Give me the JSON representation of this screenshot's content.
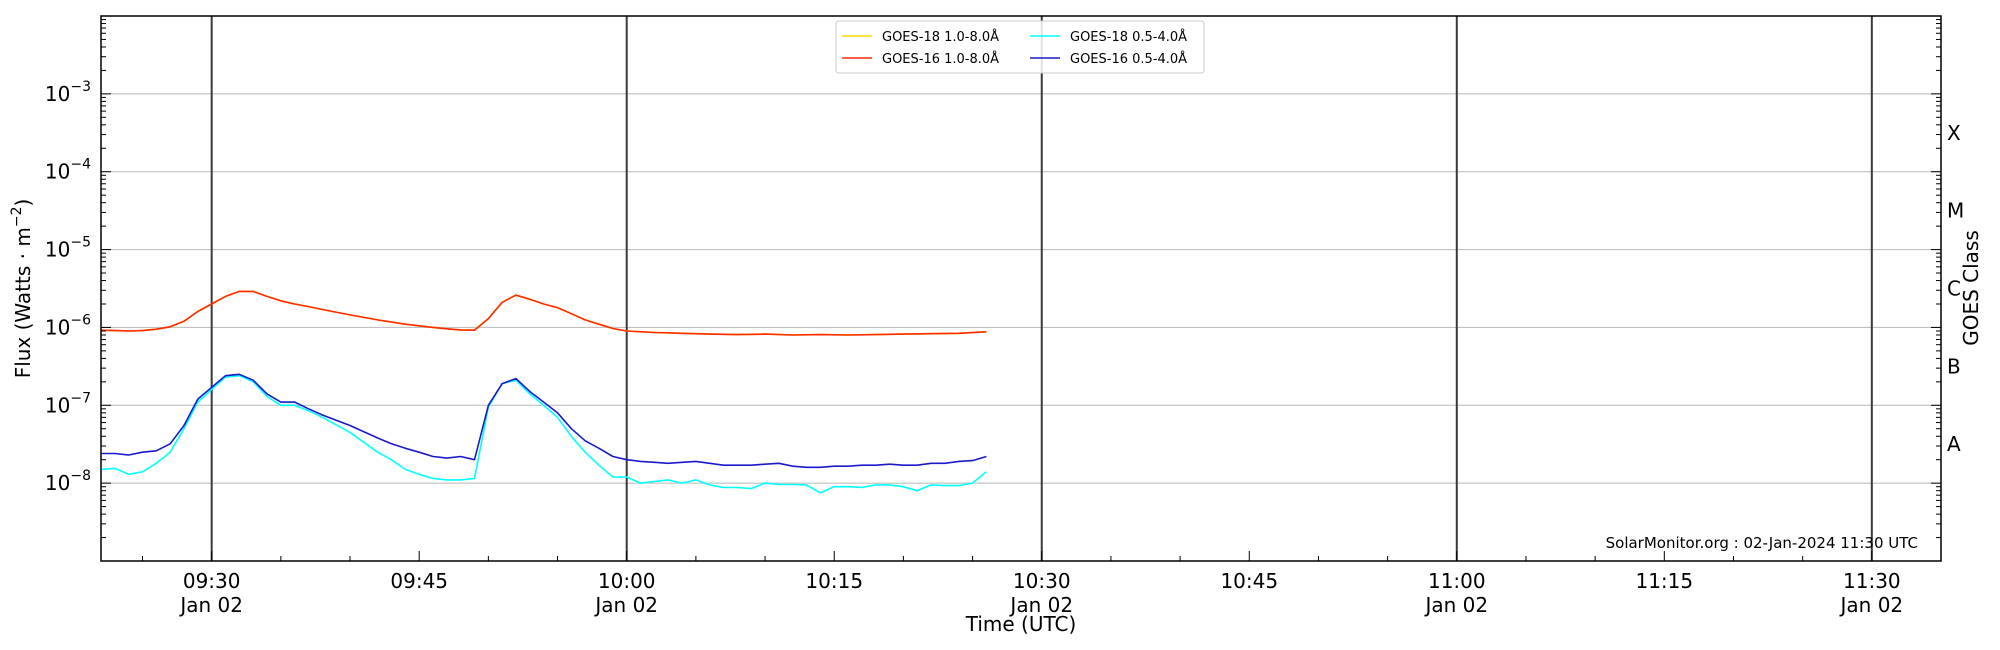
{
  "chart_data": {
    "type": "line",
    "xlabel": "Time (UTC)",
    "ylabel": "Flux (Watts · m⁻²)",
    "ylabel_right": "GOES Class",
    "y_scale": "log",
    "ylim": [
      1e-09,
      0.01
    ],
    "xlim": [
      "09:22",
      "11:35"
    ],
    "grid": "horizontal at decades",
    "legend_position": "top-center",
    "x_ticks": [
      {
        "time": "09:30",
        "label": "09:30",
        "date": "Jan 02"
      },
      {
        "time": "09:45",
        "label": "09:45",
        "date": ""
      },
      {
        "time": "10:00",
        "label": "10:00",
        "date": "Jan 02"
      },
      {
        "time": "10:15",
        "label": "10:15",
        "date": ""
      },
      {
        "time": "10:30",
        "label": "10:30",
        "date": "Jan 02"
      },
      {
        "time": "10:45",
        "label": "10:45",
        "date": ""
      },
      {
        "time": "11:00",
        "label": "11:00",
        "date": "Jan 02"
      },
      {
        "time": "11:15",
        "label": "11:15",
        "date": ""
      },
      {
        "time": "11:30",
        "label": "11:30",
        "date": "Jan 02"
      }
    ],
    "vlines": [
      "09:30",
      "10:00",
      "10:30",
      "11:00",
      "11:30"
    ],
    "y_ticks": [
      {
        "value": 1e-08,
        "base": "10",
        "exp": "−8"
      },
      {
        "value": 1e-07,
        "base": "10",
        "exp": "−7"
      },
      {
        "value": 1e-06,
        "base": "10",
        "exp": "−6"
      },
      {
        "value": 1e-05,
        "base": "10",
        "exp": "−5"
      },
      {
        "value": 0.0001,
        "base": "10",
        "exp": "−4"
      },
      {
        "value": 0.001,
        "base": "10",
        "exp": "−3"
      }
    ],
    "goes_classes": [
      {
        "label": "X",
        "value": 0.000316
      },
      {
        "label": "M",
        "value": 3.16e-05
      },
      {
        "label": "C",
        "value": 3.16e-06
      },
      {
        "label": "B",
        "value": 3.16e-07
      },
      {
        "label": "A",
        "value": 3.16e-08
      }
    ],
    "annotation": "SolarMonitor.org : 02-Jan-2024 11:30 UTC",
    "series": [
      {
        "name": "GOES-18 1.0-8.0Å",
        "color": "#ffd700",
        "times": [
          "09:22",
          "09:23",
          "09:24",
          "09:25",
          "09:26",
          "09:27",
          "09:28",
          "09:29",
          "09:30",
          "09:31",
          "09:32",
          "09:33",
          "09:34",
          "09:35",
          "09:36",
          "09:37",
          "09:38",
          "09:40",
          "09:42",
          "09:44",
          "09:46",
          "09:47",
          "09:48",
          "09:49",
          "09:50",
          "09:51",
          "09:52",
          "09:53",
          "09:54",
          "09:55",
          "09:56",
          "09:57",
          "09:58",
          "09:59",
          "10:00",
          "10:02",
          "10:04",
          "10:06",
          "10:08",
          "10:10",
          "10:12",
          "10:14",
          "10:16",
          "10:18",
          "10:20",
          "10:22",
          "10:24",
          "10:26"
        ],
        "values": [
          9.2e-07,
          9.1e-07,
          9e-07,
          9.1e-07,
          9.5e-07,
          1.02e-06,
          1.2e-06,
          1.6e-06,
          2e-06,
          2.5e-06,
          2.9e-06,
          2.9e-06,
          2.5e-06,
          2.2e-06,
          2e-06,
          1.85e-06,
          1.7e-06,
          1.45e-06,
          1.25e-06,
          1.1e-06,
          1e-06,
          9.6e-07,
          9.3e-07,
          9.2e-07,
          1.3e-06,
          2.1e-06,
          2.6e-06,
          2.3e-06,
          2e-06,
          1.8e-06,
          1.5e-06,
          1.25e-06,
          1.1e-06,
          9.7e-07,
          9e-07,
          8.6e-07,
          8.4e-07,
          8.2e-07,
          8.1e-07,
          8.2e-07,
          8e-07,
          8.1e-07,
          8e-07,
          8.1e-07,
          8.2e-07,
          8.3e-07,
          8.4e-07,
          8.8e-07
        ]
      },
      {
        "name": "GOES-16 1.0-8.0Å",
        "color": "#ff2a00",
        "times": [
          "09:22",
          "09:23",
          "09:24",
          "09:25",
          "09:26",
          "09:27",
          "09:28",
          "09:29",
          "09:30",
          "09:31",
          "09:32",
          "09:33",
          "09:34",
          "09:35",
          "09:36",
          "09:37",
          "09:38",
          "09:40",
          "09:42",
          "09:44",
          "09:46",
          "09:47",
          "09:48",
          "09:49",
          "09:50",
          "09:51",
          "09:52",
          "09:53",
          "09:54",
          "09:55",
          "09:56",
          "09:57",
          "09:58",
          "09:59",
          "10:00",
          "10:02",
          "10:04",
          "10:06",
          "10:08",
          "10:10",
          "10:12",
          "10:14",
          "10:16",
          "10:18",
          "10:20",
          "10:22",
          "10:24",
          "10:26"
        ],
        "values": [
          9.2e-07,
          9.1e-07,
          9e-07,
          9.1e-07,
          9.5e-07,
          1.02e-06,
          1.2e-06,
          1.6e-06,
          2e-06,
          2.5e-06,
          2.9e-06,
          2.9e-06,
          2.5e-06,
          2.2e-06,
          2e-06,
          1.85e-06,
          1.7e-06,
          1.45e-06,
          1.25e-06,
          1.1e-06,
          1e-06,
          9.6e-07,
          9.3e-07,
          9.2e-07,
          1.3e-06,
          2.1e-06,
          2.6e-06,
          2.3e-06,
          2e-06,
          1.8e-06,
          1.5e-06,
          1.25e-06,
          1.1e-06,
          9.7e-07,
          9e-07,
          8.6e-07,
          8.4e-07,
          8.2e-07,
          8.1e-07,
          8.2e-07,
          8e-07,
          8.1e-07,
          8e-07,
          8.1e-07,
          8.2e-07,
          8.3e-07,
          8.4e-07,
          8.8e-07
        ]
      },
      {
        "name": "GOES-18 0.5-4.0Å",
        "color": "#00ffff",
        "times": [
          "09:22",
          "09:23",
          "09:24",
          "09:25",
          "09:26",
          "09:27",
          "09:28",
          "09:29",
          "09:30",
          "09:31",
          "09:32",
          "09:33",
          "09:34",
          "09:35",
          "09:36",
          "09:37",
          "09:38",
          "09:40",
          "09:42",
          "09:43",
          "09:44",
          "09:45",
          "09:46",
          "09:47",
          "09:48",
          "09:49",
          "09:50",
          "09:51",
          "09:52",
          "09:53",
          "09:54",
          "09:55",
          "09:56",
          "09:57",
          "09:58",
          "09:59",
          "10:00",
          "10:01",
          "10:02",
          "10:03",
          "10:04",
          "10:05",
          "10:06",
          "10:07",
          "10:08",
          "10:09",
          "10:10",
          "10:11",
          "10:12",
          "10:13",
          "10:14",
          "10:15",
          "10:16",
          "10:17",
          "10:18",
          "10:19",
          "10:20",
          "10:21",
          "10:22",
          "10:23",
          "10:24",
          "10:25",
          "10:26"
        ],
        "values": [
          1.5e-08,
          1.55e-08,
          1.3e-08,
          1.4e-08,
          1.8e-08,
          2.5e-08,
          5e-08,
          1.1e-07,
          1.6e-07,
          2.3e-07,
          2.4e-07,
          2e-07,
          1.3e-07,
          1e-07,
          1e-07,
          8.5e-08,
          7e-08,
          4.5e-08,
          2.5e-08,
          2e-08,
          1.5e-08,
          1.3e-08,
          1.15e-08,
          1.1e-08,
          1.1e-08,
          1.15e-08,
          9.5e-08,
          1.9e-07,
          2.1e-07,
          1.4e-07,
          1e-07,
          7e-08,
          4e-08,
          2.5e-08,
          1.7e-08,
          1.2e-08,
          1.2e-08,
          1e-08,
          1.05e-08,
          1.1e-08,
          1e-08,
          1.1e-08,
          9.5e-09,
          8.8e-09,
          8.8e-09,
          8.5e-09,
          1e-08,
          9.6e-09,
          9.6e-09,
          9.5e-09,
          7.5e-09,
          9e-09,
          9e-09,
          8.8e-09,
          9.5e-09,
          9.5e-09,
          9e-09,
          8e-09,
          9.5e-09,
          9.3e-09,
          9.3e-09,
          1e-08,
          1.4e-08
        ]
      },
      {
        "name": "GOES-16 0.5-4.0Å",
        "color": "#1a1acc",
        "times": [
          "09:22",
          "09:23",
          "09:24",
          "09:25",
          "09:26",
          "09:27",
          "09:28",
          "09:29",
          "09:30",
          "09:31",
          "09:32",
          "09:33",
          "09:34",
          "09:35",
          "09:36",
          "09:37",
          "09:38",
          "09:40",
          "09:42",
          "09:43",
          "09:44",
          "09:45",
          "09:46",
          "09:47",
          "09:48",
          "09:49",
          "09:50",
          "09:51",
          "09:52",
          "09:53",
          "09:54",
          "09:55",
          "09:56",
          "09:57",
          "09:58",
          "09:59",
          "10:00",
          "10:01",
          "10:02",
          "10:03",
          "10:04",
          "10:05",
          "10:06",
          "10:07",
          "10:08",
          "10:09",
          "10:10",
          "10:11",
          "10:12",
          "10:13",
          "10:14",
          "10:15",
          "10:16",
          "10:17",
          "10:18",
          "10:19",
          "10:20",
          "10:21",
          "10:22",
          "10:23",
          "10:24",
          "10:25",
          "10:26"
        ],
        "values": [
          2.4e-08,
          2.4e-08,
          2.3e-08,
          2.5e-08,
          2.6e-08,
          3.2e-08,
          5.5e-08,
          1.2e-07,
          1.7e-07,
          2.4e-07,
          2.5e-07,
          2.1e-07,
          1.4e-07,
          1.1e-07,
          1.1e-07,
          9e-08,
          7.5e-08,
          5.5e-08,
          3.8e-08,
          3.2e-08,
          2.8e-08,
          2.5e-08,
          2.2e-08,
          2.1e-08,
          2.2e-08,
          2e-08,
          1e-07,
          1.9e-07,
          2.2e-07,
          1.5e-07,
          1.1e-07,
          8e-08,
          5e-08,
          3.5e-08,
          2.8e-08,
          2.2e-08,
          2e-08,
          1.9e-08,
          1.85e-08,
          1.8e-08,
          1.85e-08,
          1.9e-08,
          1.8e-08,
          1.7e-08,
          1.7e-08,
          1.7e-08,
          1.75e-08,
          1.8e-08,
          1.65e-08,
          1.6e-08,
          1.6e-08,
          1.65e-08,
          1.65e-08,
          1.7e-08,
          1.7e-08,
          1.75e-08,
          1.7e-08,
          1.7e-08,
          1.8e-08,
          1.8e-08,
          1.9e-08,
          1.95e-08,
          2.2e-08
        ]
      }
    ]
  }
}
